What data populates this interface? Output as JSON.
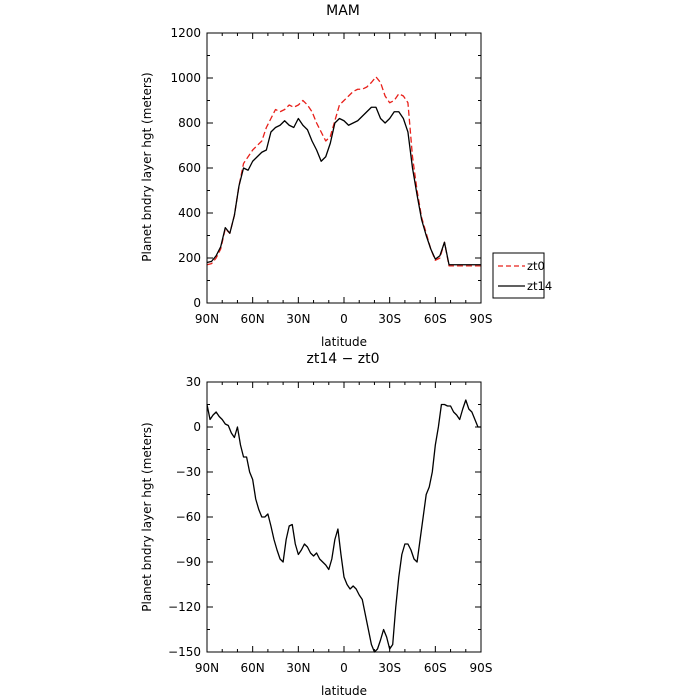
{
  "chart_data": [
    {
      "type": "line",
      "title": "MAM",
      "xlabel": "latitude",
      "ylabel": "Planet bndry layer hgt (meters)",
      "xlim": [
        90,
        -90
      ],
      "ylim": [
        0,
        1200
      ],
      "xticks": [
        90,
        60,
        30,
        0,
        -30,
        -60,
        -90
      ],
      "xtick_labels": [
        "90N",
        "60N",
        "30N",
        "0",
        "30S",
        "60S",
        "90S"
      ],
      "yticks": [
        0,
        200,
        400,
        600,
        800,
        1000,
        1200
      ],
      "ytick_labels": [
        "0",
        "200",
        "400",
        "600",
        "800",
        "1000",
        "1200"
      ],
      "legend": "right",
      "grid": false,
      "series": [
        {
          "name": "zt0",
          "color": "#e8201a",
          "dash": "dashed",
          "x": [
            90,
            87,
            84,
            81,
            78,
            75,
            72,
            69,
            66,
            63,
            60,
            57,
            54,
            51,
            48,
            45,
            42,
            39,
            36,
            33,
            30,
            27,
            24,
            21,
            18,
            15,
            12,
            9,
            6,
            3,
            0,
            -3,
            -6,
            -9,
            -12,
            -15,
            -18,
            -21,
            -24,
            -27,
            -30,
            -33,
            -36,
            -39,
            -42,
            -45,
            -48,
            -51,
            -54,
            -57,
            -60,
            -63,
            -66,
            -69,
            -72,
            -75,
            -78,
            -81,
            -84,
            -87,
            -90
          ],
          "y": [
            170,
            175,
            200,
            240,
            330,
            310,
            390,
            520,
            620,
            650,
            680,
            700,
            720,
            780,
            820,
            860,
            850,
            860,
            880,
            870,
            880,
            900,
            880,
            850,
            800,
            760,
            720,
            740,
            810,
            880,
            900,
            920,
            940,
            950,
            950,
            960,
            980,
            1005,
            980,
            920,
            890,
            900,
            930,
            920,
            890,
            650,
            500,
            380,
            310,
            240,
            190,
            200,
            270,
            165,
            165,
            165,
            165,
            165,
            165,
            165,
            165
          ]
        },
        {
          "name": "zt14",
          "color": "#000000",
          "dash": "solid",
          "x": [
            90,
            87,
            84,
            81,
            78,
            75,
            72,
            69,
            66,
            63,
            60,
            57,
            54,
            51,
            48,
            45,
            42,
            39,
            36,
            33,
            30,
            27,
            24,
            21,
            18,
            15,
            12,
            9,
            6,
            3,
            0,
            -3,
            -6,
            -9,
            -12,
            -15,
            -18,
            -21,
            -24,
            -27,
            -30,
            -33,
            -36,
            -39,
            -42,
            -45,
            -48,
            -51,
            -54,
            -57,
            -60,
            -63,
            -66,
            -69,
            -72,
            -75,
            -78,
            -81,
            -84,
            -87,
            -90
          ],
          "y": [
            180,
            185,
            210,
            250,
            335,
            310,
            390,
            520,
            600,
            590,
            630,
            650,
            670,
            680,
            760,
            780,
            790,
            810,
            790,
            780,
            820,
            790,
            770,
            720,
            680,
            630,
            650,
            710,
            800,
            820,
            810,
            790,
            800,
            810,
            830,
            850,
            870,
            870,
            820,
            800,
            820,
            850,
            850,
            820,
            760,
            600,
            480,
            370,
            300,
            240,
            195,
            210,
            270,
            170,
            170,
            170,
            170,
            170,
            170,
            170,
            170
          ]
        }
      ]
    },
    {
      "type": "line",
      "title": "zt14 − zt0",
      "xlabel": "latitude",
      "ylabel": "Planet bndry layer hgt (meters)",
      "xlim": [
        90,
        -90
      ],
      "ylim": [
        -150,
        30
      ],
      "xticks": [
        90,
        60,
        30,
        0,
        -30,
        -60,
        -90
      ],
      "xtick_labels": [
        "90N",
        "60N",
        "30N",
        "0",
        "30S",
        "60S",
        "90S"
      ],
      "yticks": [
        30,
        0,
        -30,
        -60,
        -90,
        -120,
        -150
      ],
      "ytick_labels": [
        "30",
        "0",
        "−30",
        "−60",
        "−90",
        "−120",
        "−150"
      ],
      "grid": false,
      "series": [
        {
          "color": "#000000",
          "dash": "solid",
          "x": [
            90,
            88,
            86,
            84,
            82,
            80,
            78,
            76,
            74,
            72,
            70,
            68,
            66,
            64,
            62,
            60,
            58,
            56,
            54,
            52,
            50,
            48,
            46,
            44,
            42,
            40,
            38,
            36,
            34,
            32,
            30,
            28,
            26,
            24,
            22,
            20,
            18,
            16,
            14,
            12,
            10,
            8,
            6,
            4,
            2,
            0,
            -2,
            -4,
            -6,
            -8,
            -10,
            -12,
            -14,
            -16,
            -18,
            -20,
            -22,
            -24,
            -26,
            -28,
            -30,
            -32,
            -34,
            -36,
            -38,
            -40,
            -42,
            -44,
            -46,
            -48,
            -50,
            -52,
            -54,
            -56,
            -58,
            -60,
            -62,
            -64,
            -66,
            -68,
            -70,
            -72,
            -74,
            -76,
            -78,
            -80,
            -82,
            -84,
            -86,
            -88,
            -90
          ],
          "y": [
            15,
            5,
            8,
            10,
            7,
            5,
            2,
            1,
            -4,
            -7,
            0,
            -12,
            -20,
            -20,
            -30,
            -35,
            -48,
            -55,
            -60,
            -60,
            -58,
            -66,
            -75,
            -82,
            -88,
            -90,
            -75,
            -66,
            -65,
            -78,
            -85,
            -82,
            -78,
            -80,
            -84,
            -86,
            -84,
            -88,
            -90,
            -92,
            -95,
            -88,
            -75,
            -68,
            -85,
            -100,
            -105,
            -108,
            -106,
            -108,
            -112,
            -115,
            -125,
            -135,
            -145,
            -150,
            -148,
            -142,
            -135,
            -140,
            -148,
            -145,
            -120,
            -100,
            -85,
            -78,
            -78,
            -82,
            -88,
            -90,
            -75,
            -60,
            -45,
            -40,
            -30,
            -12,
            0,
            15,
            15,
            14,
            14,
            10,
            8,
            5,
            12,
            18,
            12,
            10,
            5,
            0,
            0
          ]
        }
      ]
    }
  ]
}
